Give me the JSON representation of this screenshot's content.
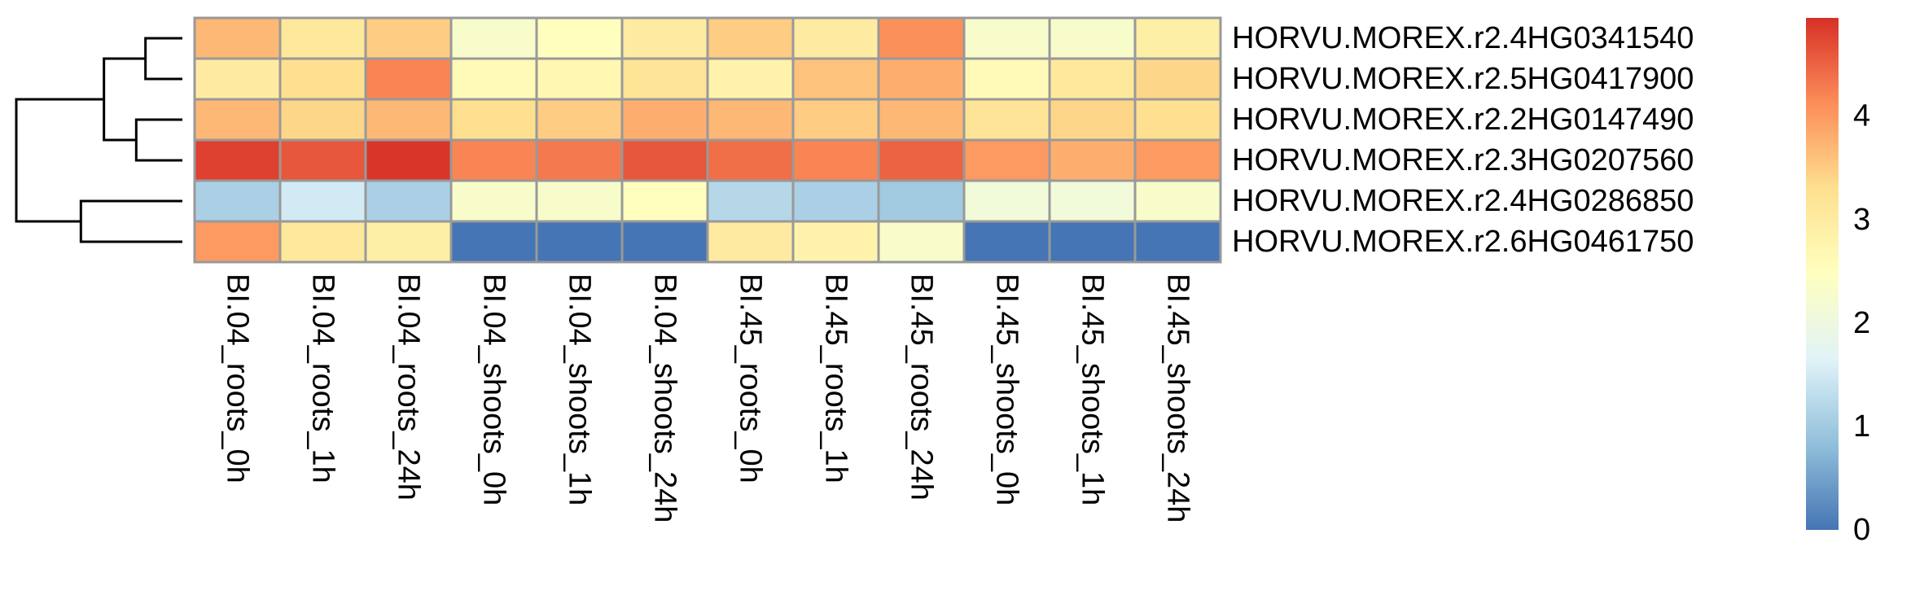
{
  "chart_data": {
    "type": "heatmap",
    "title": "",
    "xlabel": "",
    "ylabel": "",
    "columns": [
      "BI.04_roots_0h",
      "BI.04_roots_1h",
      "BI.04_roots_24h",
      "BI.04_shoots_0h",
      "BI.04_shoots_1h",
      "BI.04_shoots_24h",
      "BI.45_roots_0h",
      "BI.45_roots_1h",
      "BI.45_roots_24h",
      "BI.45_shoots_0h",
      "BI.45_shoots_1h",
      "BI.45_shoots_24h"
    ],
    "rows": [
      "HORVU.MOREX.r2.4HG0341540",
      "HORVU.MOREX.r2.5HG0417900",
      "HORVU.MOREX.r2.2HG0147490",
      "HORVU.MOREX.r2.3HG0207560",
      "HORVU.MOREX.r2.4HG0286850",
      "HORVU.MOREX.r2.6HG0461750"
    ],
    "values": [
      [
        3.7,
        3.1,
        3.5,
        2.3,
        2.5,
        3.0,
        3.5,
        3.0,
        4.1,
        2.3,
        2.3,
        2.9
      ],
      [
        3.0,
        3.3,
        4.2,
        2.6,
        2.7,
        3.2,
        2.8,
        3.6,
        3.8,
        2.6,
        3.1,
        3.4
      ],
      [
        3.7,
        3.4,
        3.7,
        3.3,
        3.5,
        3.8,
        3.7,
        3.5,
        3.7,
        3.2,
        3.4,
        3.3
      ],
      [
        4.8,
        4.6,
        4.9,
        4.2,
        4.3,
        4.6,
        4.4,
        4.2,
        4.5,
        4.0,
        3.8,
        4.0
      ],
      [
        1.1,
        1.5,
        1.1,
        2.3,
        2.3,
        2.5,
        1.2,
        1.1,
        1.0,
        2.1,
        2.1,
        2.3
      ],
      [
        4.0,
        3.1,
        2.9,
        0.0,
        0.0,
        0.0,
        3.0,
        2.8,
        2.3,
        0.0,
        0.0,
        0.0
      ]
    ],
    "color_scale": {
      "min": 0,
      "max": 4.95,
      "ticks": [
        "0",
        "1",
        "2",
        "3",
        "4"
      ],
      "colors": [
        "#4575b4",
        "#91bfdb",
        "#e0f3f8",
        "#ffffbf",
        "#fee090",
        "#fc8d59",
        "#d73027"
      ]
    },
    "row_dendrogram": {
      "merges": [
        [
          0,
          1,
          0.4
        ],
        [
          2,
          3,
          0.5
        ],
        [
          -1,
          -2,
          0.85
        ],
        [
          4,
          5,
          1.1
        ],
        [
          -3,
          -4,
          1.8
        ]
      ]
    },
    "cell_border_color": "#999999",
    "legend_position": "right"
  }
}
